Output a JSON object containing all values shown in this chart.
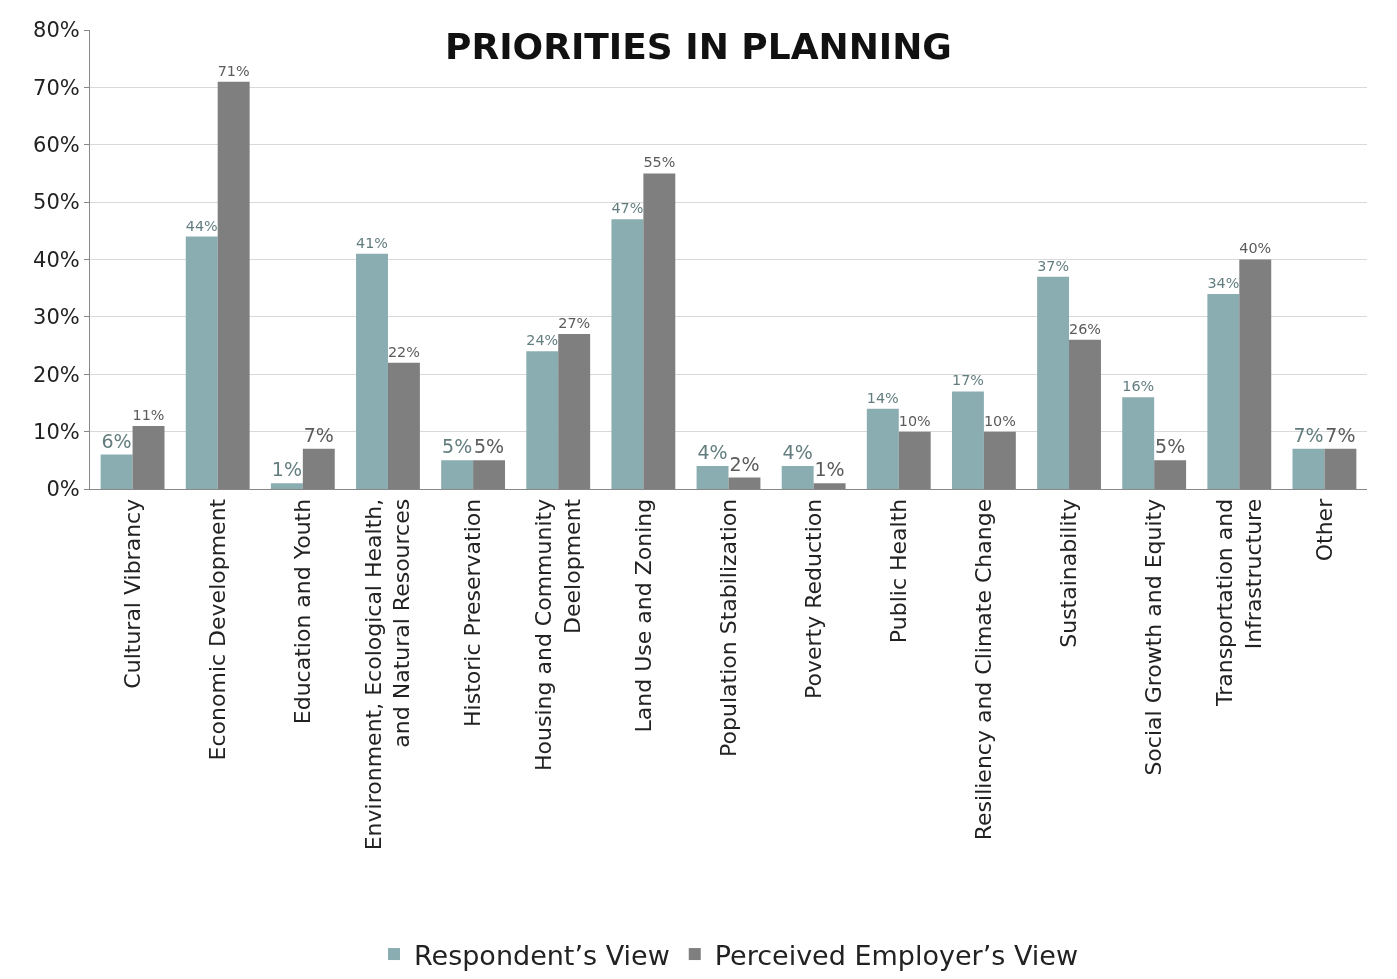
{
  "chart_data": {
    "type": "bar",
    "title": "PRIORITIES IN PLANNING",
    "categories": [
      "Cultural Vibrancy",
      "Economic Development",
      "Education and Youth",
      "Environment, Ecological Health, and Natural Resources",
      "Historic Preservation",
      "Housing and Community Deelopment",
      "Land Use and Zoning",
      "Population Stabilization",
      "Poverty Reduction",
      "Public Health",
      "Resiliency and Climate Change",
      "Sustainability",
      "Social Growth and Equity",
      "Transportation and Infrastructure",
      "Other"
    ],
    "series": [
      {
        "name": "Respondent’s View",
        "color": "#8aadb1",
        "values": [
          6,
          44,
          1,
          41,
          5,
          24,
          47,
          4,
          4,
          14,
          17,
          37,
          16,
          34,
          7
        ],
        "value_labels": [
          "6%",
          "44%",
          "1%",
          "41%",
          "5%",
          "24%",
          "47%",
          "4%",
          "4%",
          "14%",
          "17%",
          "37%",
          "16%",
          "34%",
          "7%"
        ]
      },
      {
        "name": "Perceived Employer’s View",
        "color": "#7f7f7f",
        "values": [
          11,
          71,
          7,
          22,
          5,
          27,
          55,
          2,
          1,
          10,
          10,
          26,
          5,
          40,
          7
        ],
        "value_labels": [
          "11%",
          "71%",
          "7%",
          "22%",
          "5%",
          "27%",
          "55%",
          "2%",
          "1%",
          "10%",
          "10%",
          "26%",
          "5%",
          "40%",
          "7%"
        ]
      }
    ],
    "ylim": [
      0,
      80
    ],
    "yticks": [
      {
        "value": 0,
        "label": "0%"
      },
      {
        "value": 10,
        "label": "10%"
      },
      {
        "value": 20,
        "label": "20%"
      },
      {
        "value": 30,
        "label": "30%"
      },
      {
        "value": 40,
        "label": "40%"
      },
      {
        "value": 50,
        "label": "50%"
      },
      {
        "value": 60,
        "label": "60%"
      },
      {
        "value": 70,
        "label": "70%"
      },
      {
        "value": 80,
        "label": "80%"
      }
    ],
    "grid": "y",
    "legend": "bottom"
  }
}
